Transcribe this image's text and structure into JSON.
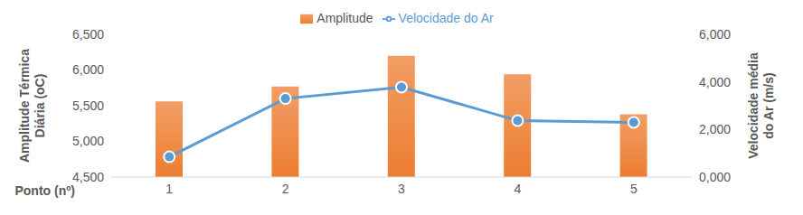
{
  "chart_data": {
    "type": "bar",
    "xlabel": "Ponto (nº)",
    "ylabel": "Amplitude Térmica Diária (oC)",
    "y2label": "Velocidade média do Ar (m/s)",
    "categories": [
      "1",
      "2",
      "3",
      "4",
      "5"
    ],
    "series": [
      {
        "name": "Amplitude",
        "type": "bar",
        "color": "#ed7d31",
        "values": [
          5.56,
          5.77,
          6.2,
          5.94,
          5.38
        ]
      },
      {
        "name": "Velocidade do Ar",
        "type": "line",
        "color": "#5b9bd5",
        "marker": "circle",
        "axis": "y2",
        "values": [
          0.85,
          3.3,
          3.78,
          2.37,
          2.3
        ]
      }
    ],
    "ylim": [
      4.5,
      6.5
    ],
    "yticks": [
      {
        "value": 4.5,
        "label": "4,500"
      },
      {
        "value": 5,
        "label": "5,000"
      },
      {
        "value": 5.5,
        "label": "5,500"
      },
      {
        "value": 6,
        "label": "6,000"
      },
      {
        "value": 6.5,
        "label": "6,500"
      }
    ],
    "y2lim": [
      0,
      6
    ],
    "y2ticks": [
      {
        "value": 0,
        "label": "0,000"
      },
      {
        "value": 2,
        "label": "2,000"
      },
      {
        "value": 4,
        "label": "4,000"
      },
      {
        "value": 6,
        "label": "6,000"
      }
    ],
    "legend": "top",
    "grid": false
  }
}
